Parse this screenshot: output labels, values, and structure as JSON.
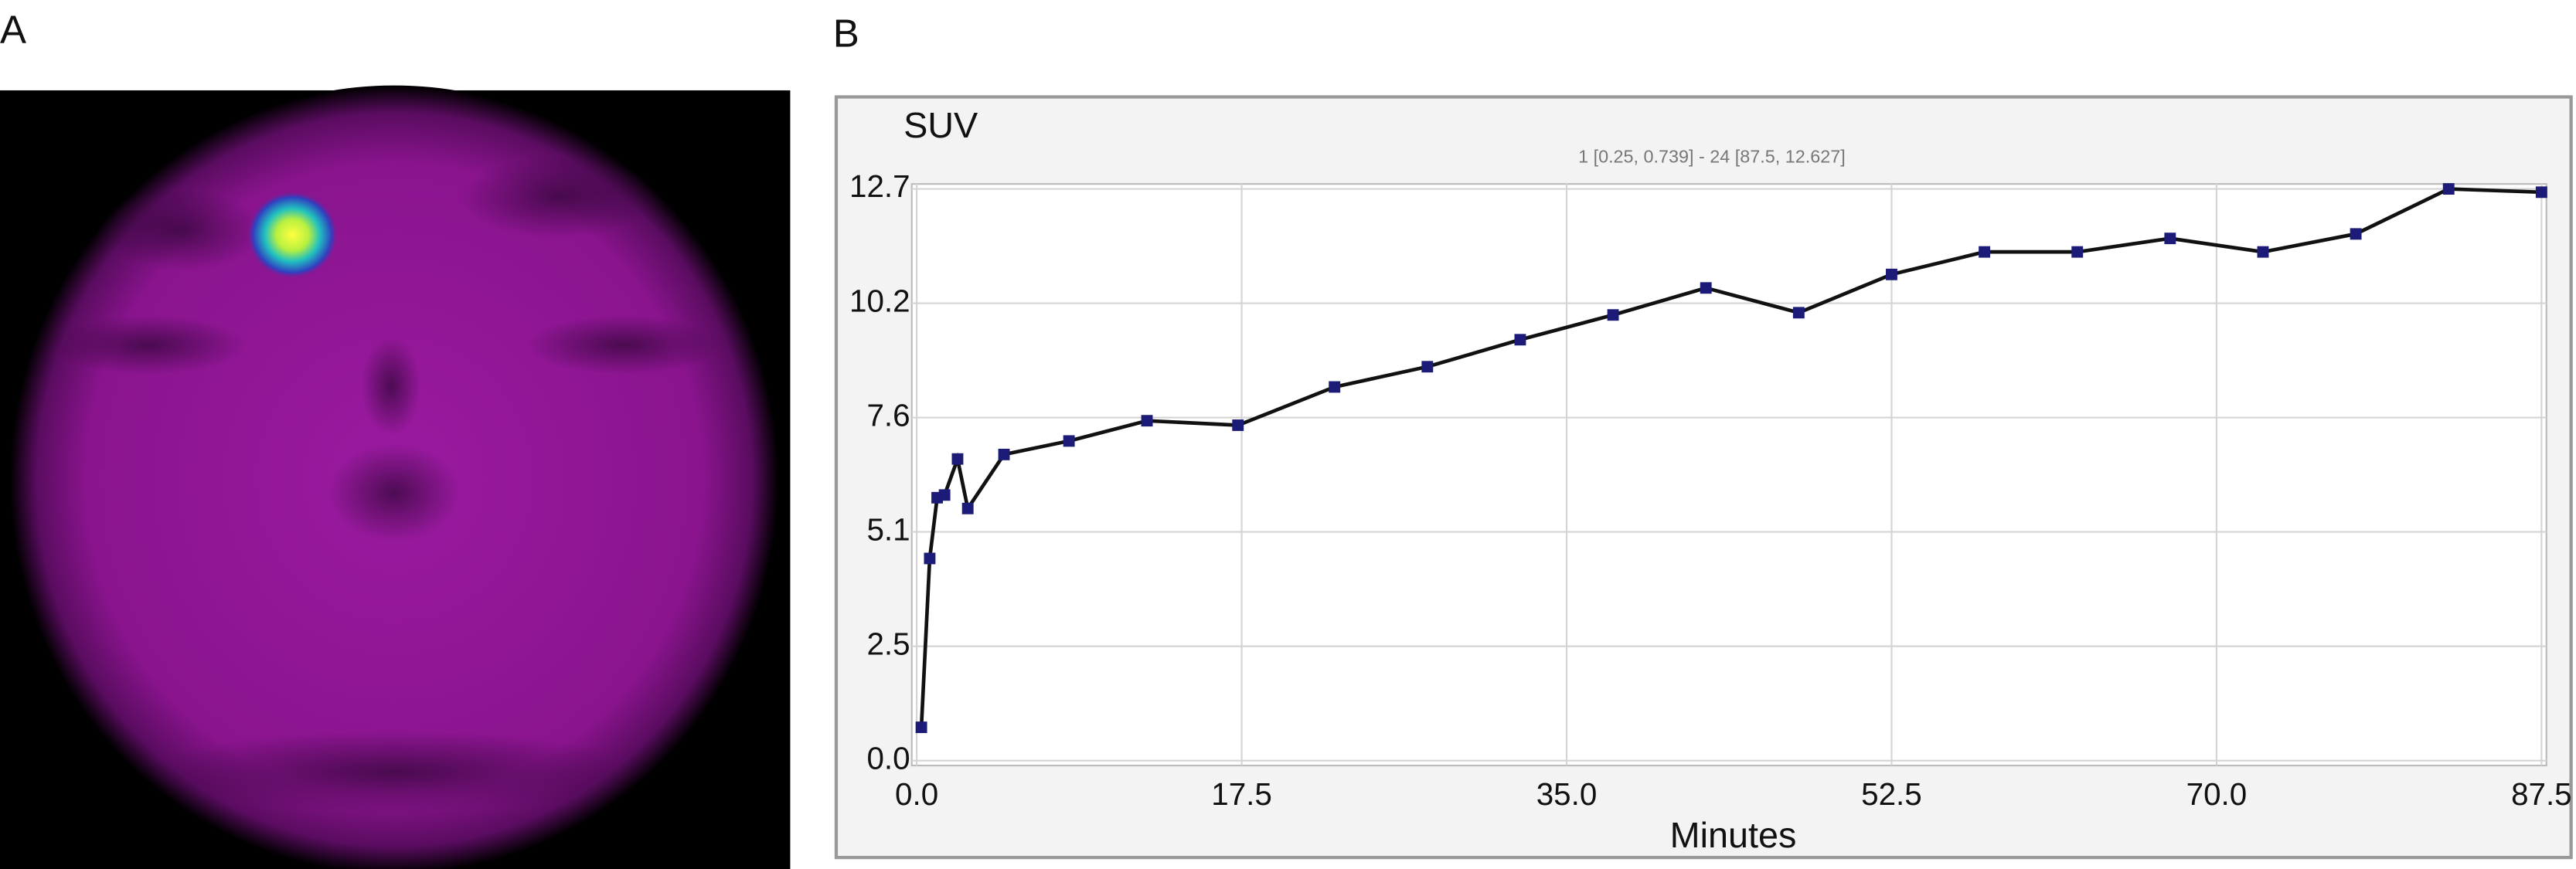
{
  "panel_labels": [
    "A",
    "B"
  ],
  "chart_data": {
    "type": "line",
    "annotation": "1 [0.25, 0.739] - 24 [87.5, 12.627]",
    "ylabel": "SUV",
    "xlabel": "Minutes",
    "x": [
      0.25,
      0.7,
      1.1,
      1.5,
      2.2,
      2.75,
      4.7,
      8.2,
      12.4,
      17.3,
      22.5,
      27.5,
      32.5,
      37.5,
      42.5,
      47.5,
      52.5,
      57.5,
      62.5,
      67.5,
      72.5,
      77.5,
      82.5,
      87.5
    ],
    "values": [
      0.739,
      4.49,
      5.84,
      5.9,
      6.7,
      5.6,
      6.8,
      7.1,
      7.55,
      7.45,
      8.3,
      8.75,
      9.35,
      9.9,
      10.5,
      9.95,
      10.8,
      11.3,
      11.3,
      11.6,
      11.3,
      11.7,
      12.7,
      12.627
    ],
    "color": "#111111",
    "marker_color": "#1c1c78",
    "xlim": [
      0,
      87.5
    ],
    "xticks": [
      {
        "value": 0,
        "label": "0.0"
      },
      17.5,
      {
        "value": 35,
        "label": "35.0"
      },
      52.5,
      {
        "value": 70,
        "label": "70.0"
      },
      87.5
    ],
    "ylim": [
      0,
      12.7
    ],
    "yticks": [
      {
        "value": 0,
        "label": "0.0"
      },
      {
        "value": 2.54,
        "label": "2.5"
      },
      {
        "value": 5.08,
        "label": "5.1"
      },
      {
        "value": 7.62,
        "label": "7.6"
      },
      {
        "value": 10.16,
        "label": "10.2"
      },
      12.7
    ],
    "grid": true
  }
}
